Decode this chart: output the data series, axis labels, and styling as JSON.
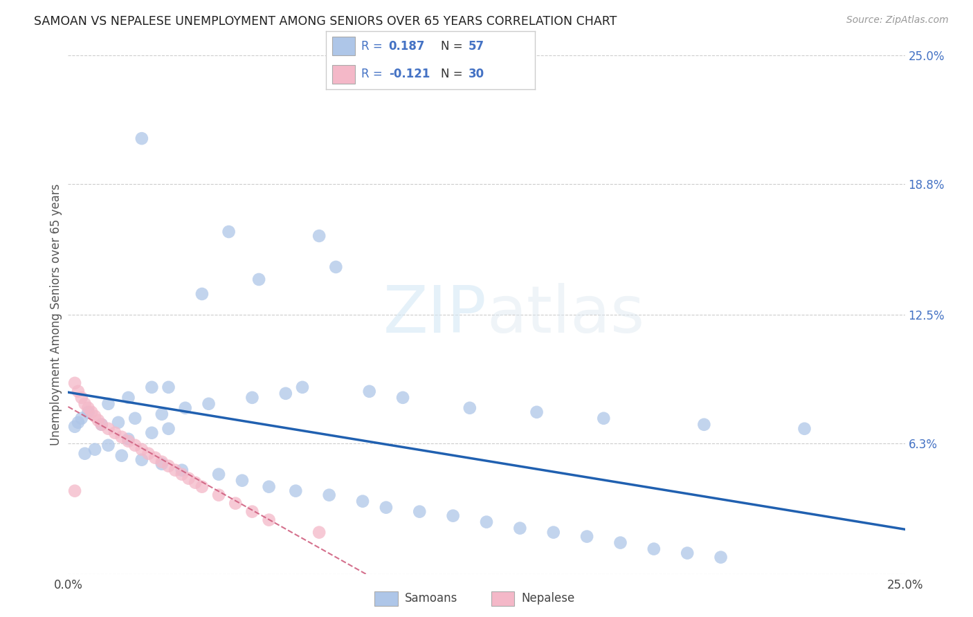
{
  "title": "SAMOAN VS NEPALESE UNEMPLOYMENT AMONG SENIORS OVER 65 YEARS CORRELATION CHART",
  "source": "Source: ZipAtlas.com",
  "ylabel": "Unemployment Among Seniors over 65 years",
  "xlim": [
    0.0,
    0.25
  ],
  "ylim": [
    0.0,
    0.25
  ],
  "ytick_labels_right": [
    "25.0%",
    "18.8%",
    "12.5%",
    "6.3%",
    ""
  ],
  "ytick_vals_right": [
    0.25,
    0.188,
    0.125,
    0.063,
    0.0
  ],
  "samoan_R": 0.187,
  "samoan_N": 57,
  "nepalese_R": -0.121,
  "nepalese_N": 30,
  "samoan_color": "#aec6e8",
  "samoan_line_color": "#2060b0",
  "nepalese_color": "#f4b8c8",
  "nepalese_line_color": "#d06080",
  "background_color": "#ffffff",
  "samoan_x": [
    0.022,
    0.048,
    0.075,
    0.08,
    0.057,
    0.04,
    0.03,
    0.025,
    0.018,
    0.012,
    0.006,
    0.004,
    0.003,
    0.002,
    0.01,
    0.015,
    0.02,
    0.028,
    0.035,
    0.042,
    0.055,
    0.065,
    0.07,
    0.09,
    0.1,
    0.12,
    0.14,
    0.16,
    0.19,
    0.22,
    0.03,
    0.025,
    0.018,
    0.012,
    0.008,
    0.005,
    0.016,
    0.022,
    0.028,
    0.034,
    0.045,
    0.052,
    0.06,
    0.068,
    0.078,
    0.088,
    0.095,
    0.105,
    0.115,
    0.125,
    0.135,
    0.145,
    0.155,
    0.165,
    0.175,
    0.185,
    0.195
  ],
  "samoan_y": [
    0.21,
    0.165,
    0.163,
    0.148,
    0.142,
    0.135,
    0.09,
    0.09,
    0.085,
    0.082,
    0.078,
    0.075,
    0.073,
    0.071,
    0.072,
    0.073,
    0.075,
    0.077,
    0.08,
    0.082,
    0.085,
    0.087,
    0.09,
    0.088,
    0.085,
    0.08,
    0.078,
    0.075,
    0.072,
    0.07,
    0.07,
    0.068,
    0.065,
    0.062,
    0.06,
    0.058,
    0.057,
    0.055,
    0.053,
    0.05,
    0.048,
    0.045,
    0.042,
    0.04,
    0.038,
    0.035,
    0.032,
    0.03,
    0.028,
    0.025,
    0.022,
    0.02,
    0.018,
    0.015,
    0.012,
    0.01,
    0.008
  ],
  "nepalese_x": [
    0.002,
    0.003,
    0.004,
    0.005,
    0.006,
    0.007,
    0.008,
    0.009,
    0.01,
    0.012,
    0.014,
    0.016,
    0.018,
    0.02,
    0.022,
    0.024,
    0.026,
    0.028,
    0.03,
    0.032,
    0.034,
    0.036,
    0.038,
    0.04,
    0.045,
    0.05,
    0.055,
    0.06,
    0.075,
    0.002
  ],
  "nepalese_y": [
    0.092,
    0.088,
    0.085,
    0.082,
    0.08,
    0.078,
    0.076,
    0.074,
    0.072,
    0.07,
    0.068,
    0.066,
    0.064,
    0.062,
    0.06,
    0.058,
    0.056,
    0.054,
    0.052,
    0.05,
    0.048,
    0.046,
    0.044,
    0.042,
    0.038,
    0.034,
    0.03,
    0.026,
    0.02,
    0.04
  ]
}
